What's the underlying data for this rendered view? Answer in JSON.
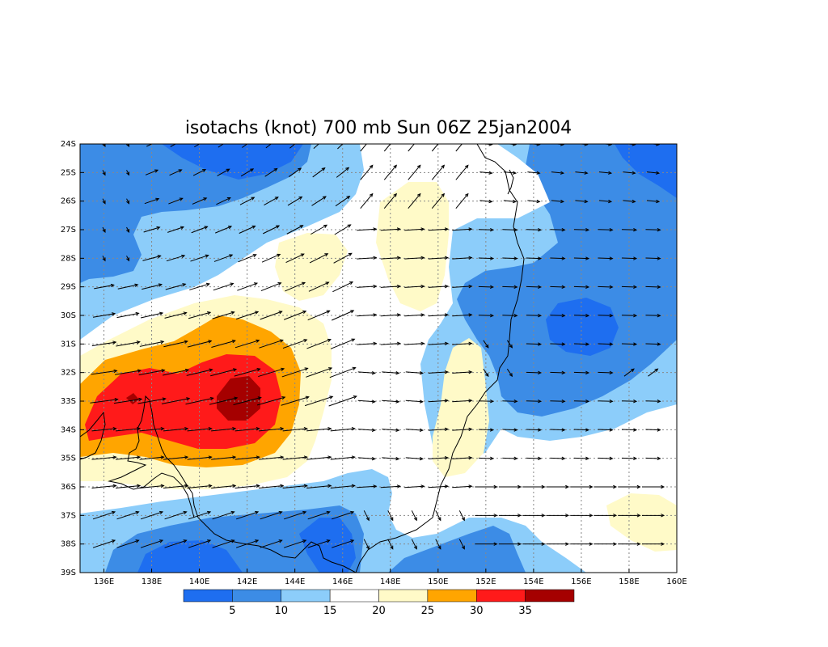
{
  "title": "isotachs (knot) 700 mb Sun 06Z 25jan2004",
  "map": {
    "lon_range": [
      135,
      160
    ],
    "lat_range": [
      -39,
      -24
    ],
    "lat_labels": [
      "24S",
      "25S",
      "26S",
      "27S",
      "28S",
      "29S",
      "30S",
      "31S",
      "32S",
      "33S",
      "34S",
      "35S",
      "36S",
      "37S",
      "38S",
      "39S"
    ],
    "lon_labels": [
      "136E",
      "138E",
      "140E",
      "142E",
      "144E",
      "146E",
      "148E",
      "150E",
      "152E",
      "154E",
      "156E",
      "158E",
      "160E"
    ]
  },
  "colorbar": {
    "colors": [
      "#1e6ef0",
      "#3c8ce6",
      "#8ccdfa",
      "#ffffff",
      "#fffac8",
      "#ffa500",
      "#ff1a1a",
      "#a50000"
    ],
    "labels": [
      "5",
      "10",
      "15",
      "20",
      "25",
      "30",
      "35"
    ]
  },
  "colors": {
    "lt5": "#1e6ef0",
    "c5_10": "#3c8ce6",
    "c10_15": "#8ccdfa",
    "c15_20": "#ffffff",
    "c20_25": "#fffac8",
    "c25_30": "#ffa500",
    "c30_35": "#ff1a1a",
    "gt35": "#a50000"
  }
}
